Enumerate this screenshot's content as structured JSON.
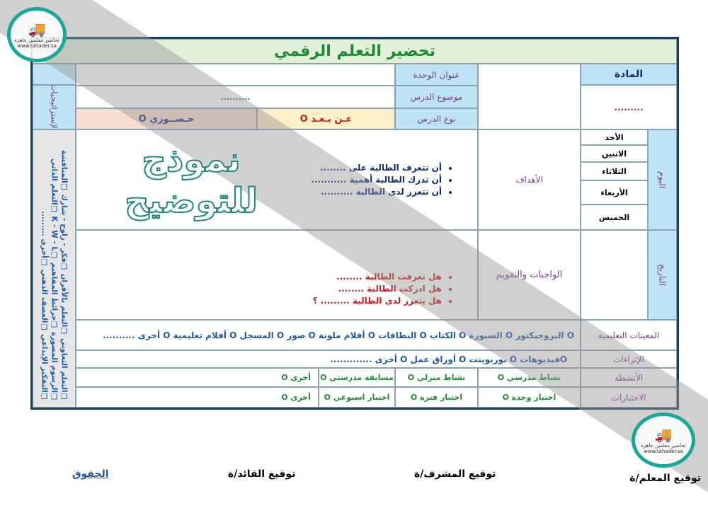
{
  "title": "تحضير التعلم الرقمي",
  "header": {
    "subject_label": "المادة",
    "subject_value": ".........",
    "unit_label": "عنوان الوحدة",
    "topic_label": "موضوع الدرس",
    "topic_value": "..........",
    "type_label": "نوع الدرس",
    "remote": "عـن بـعـد O",
    "inperson": "حـضــوري O"
  },
  "strategies_label": "الإستراتيجيات",
  "strategies": "❑التعلم التعاوني ❑التعلم بالأقران ❑فكر - زاوج - شارك ❑المناقشة ❑الرسوم المصورة ❑خرائط المفاهيم ❑K - W - L ❑التعلم الذاتي ❑التفكير الإبداعي ❑العصف الذهني ❑أخرى .........",
  "day_label": "اليوم",
  "date_label": "التاريخ",
  "days": [
    "الأحد",
    "الاثنين",
    "الثلاثاء",
    "الأربعاء",
    "الخميس"
  ],
  "objectives": {
    "label": "الأهداف",
    "items": [
      "أن تتعرف الطالبة على ........",
      "أن تدرك الطالبة أهمية ...........",
      "أن تتعزز لدى الطالبة .........."
    ]
  },
  "evaluation": {
    "label": "الواجبات والتقويم",
    "items": [
      "هل تعرفت الطالبة ........",
      "هل ادركت الطالبة ........",
      "هل يتعزز لدى الطالبة ......... ؟"
    ]
  },
  "aids": {
    "label": "المعينات التعليمية",
    "value": "O البروجيكتور O السبورة O الكتاب O البطاقات O أقلام ملونة O صور O المسجل O أفلام تعليمية O أخرى .........."
  },
  "enrichment": {
    "label": "الإثراءات",
    "value": "Oفيديوهات O بوربوينت O أوراق عمل O أخرى ............."
  },
  "activities": {
    "label": "الأنشطة",
    "items": [
      "نشاط مدرسي O",
      "نشاط منزلي O",
      "مسابقة مدرستي O",
      "أخرى O"
    ]
  },
  "tests": {
    "label": "الاختبارات",
    "items": [
      "اختبار وحدة O",
      "اختبار فترة O",
      "اختبار اسبوعي O",
      "أخرى O"
    ]
  },
  "footer": {
    "teacher": "توقيع المعلم/ة",
    "supervisor": "توقيع المشرف/ة",
    "leader": "توقيع القائد/ة",
    "rights": "الحقوق"
  },
  "watermark": "نموذج للتوضيح",
  "logo": {
    "name": "تحاضير معلمين جاهزة",
    "url": "www.tahader.sa"
  },
  "colors": {
    "border": "#1f3c5a",
    "label_bg": "#bde3f5",
    "title_bg": "#e2f0d9",
    "accent": "#18a89a"
  }
}
